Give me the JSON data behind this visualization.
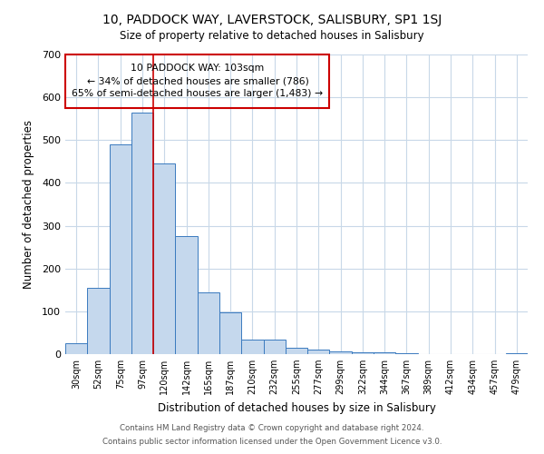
{
  "title": "10, PADDOCK WAY, LAVERSTOCK, SALISBURY, SP1 1SJ",
  "subtitle": "Size of property relative to detached houses in Salisbury",
  "xlabel": "Distribution of detached houses by size in Salisbury",
  "ylabel": "Number of detached properties",
  "bar_labels": [
    "30sqm",
    "52sqm",
    "75sqm",
    "97sqm",
    "120sqm",
    "142sqm",
    "165sqm",
    "187sqm",
    "210sqm",
    "232sqm",
    "255sqm",
    "277sqm",
    "299sqm",
    "322sqm",
    "344sqm",
    "367sqm",
    "389sqm",
    "412sqm",
    "434sqm",
    "457sqm",
    "479sqm"
  ],
  "bar_values": [
    25,
    155,
    490,
    565,
    445,
    275,
    145,
    98,
    35,
    35,
    14,
    10,
    7,
    5,
    4,
    2,
    1,
    0,
    0,
    0,
    3
  ],
  "bar_color": "#c5d8ed",
  "bar_edge_color": "#3a7abf",
  "vline_x_index": 3,
  "vline_color": "#cc0000",
  "annotation_line1": "10 PADDOCK WAY: 103sqm",
  "annotation_line2": "← 34% of detached houses are smaller (786)",
  "annotation_line3": "65% of semi-detached houses are larger (1,483) →",
  "annotation_box_edge_color": "#cc0000",
  "ylim": [
    0,
    700
  ],
  "yticks": [
    0,
    100,
    200,
    300,
    400,
    500,
    600,
    700
  ],
  "footer_line1": "Contains HM Land Registry data © Crown copyright and database right 2024.",
  "footer_line2": "Contains public sector information licensed under the Open Government Licence v3.0.",
  "background_color": "#ffffff",
  "grid_color": "#c8d8e8"
}
